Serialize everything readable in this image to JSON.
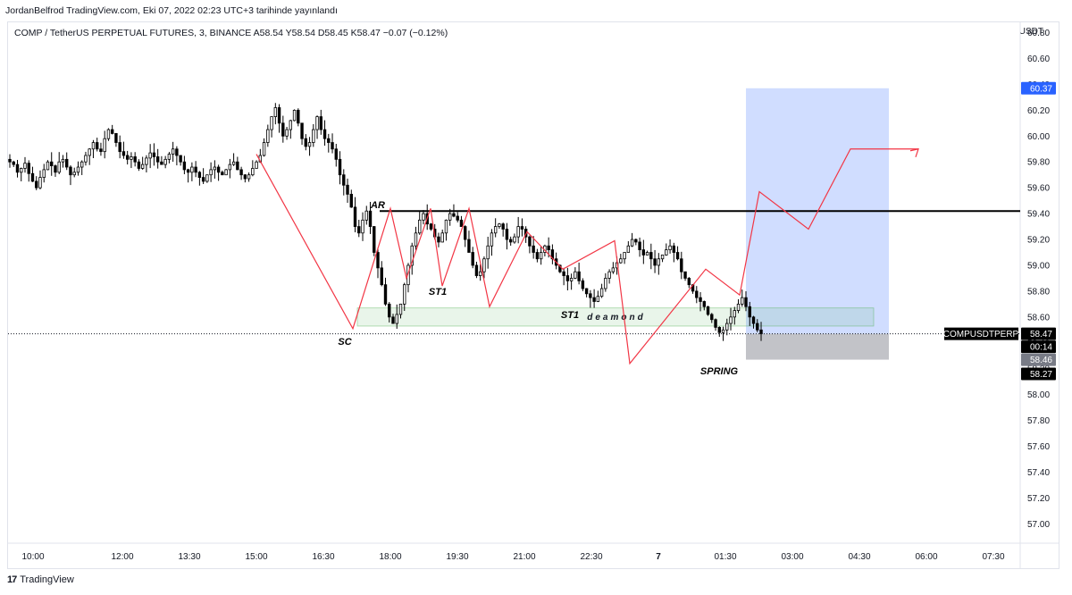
{
  "header": {
    "caption": "JordanBelfrod TradingView.com, Eki 07, 2022 02:23 UTC+3 tarihinde yayınlandı"
  },
  "legend": {
    "text": "COMP / TetherUS PERPETUAL FUTURES, 3, BINANCE  A58.54  Y58.54  D58.45  K58.47  −0.07 (−0.12%)"
  },
  "chart_data": {
    "type": "candlestick",
    "symbol": "COMPUSDTPERP",
    "unit": "USDT",
    "ylim": [
      56.85,
      60.88
    ],
    "y_ticks": [
      "60.80",
      "60.60",
      "60.40",
      "60.20",
      "60.00",
      "59.80",
      "59.60",
      "59.40",
      "59.20",
      "59.00",
      "58.80",
      "58.60",
      "58.40",
      "58.20",
      "58.00",
      "57.80",
      "57.60",
      "57.40",
      "57.20",
      "57.00"
    ],
    "x_ticks": [
      "10:00",
      "12:00",
      "13:30",
      "15:00",
      "16:30",
      "18:00",
      "19:30",
      "21:00",
      "22:30",
      "7",
      "01:30",
      "03:00",
      "04:30",
      "06:00",
      "07:30"
    ],
    "price_line": 58.47,
    "price_tags": [
      {
        "label": "60.37",
        "value": 60.37,
        "color": "#2962ff"
      },
      {
        "label": "58.47",
        "value": 58.47,
        "color": "#000000"
      },
      {
        "label": "00:14",
        "value": 58.37,
        "color": "#000000"
      },
      {
        "label": "58.46",
        "value": 58.27,
        "color": "#787b86"
      },
      {
        "label": "58.27",
        "value": 58.16,
        "color": "#000000"
      }
    ],
    "symbol_tag": "COMPUSDTPERP",
    "resistance_level": 59.42,
    "zone": {
      "label": "deamond",
      "top": 58.67,
      "bottom": 58.53
    },
    "annotations": [
      {
        "label": "AR",
        "price": 59.51
      },
      {
        "label": "SC",
        "price": 58.38
      },
      {
        "label": "ST1",
        "price": 58.82
      },
      {
        "label": "ST1",
        "price": 58.65
      },
      {
        "label": "SPRING",
        "price": 58.05
      }
    ],
    "position": {
      "entry": 58.47,
      "target": 60.37,
      "stop": 58.27
    },
    "path_prices": [
      59.86,
      58.51,
      59.44,
      58.9,
      59.44,
      58.84,
      59.44,
      58.68,
      59.26,
      58.97,
      59.19,
      58.24,
      58.97,
      58.77,
      59.57,
      59.28,
      59.9
    ],
    "projection_prices": [
      58.77,
      58.97,
      58.77,
      59.57,
      59.28,
      59.9
    ],
    "closes": [
      59.8,
      59.78,
      59.72,
      59.75,
      59.79,
      59.71,
      59.65,
      59.6,
      59.68,
      59.74,
      59.8,
      59.77,
      59.72,
      59.8,
      59.82,
      59.76,
      59.7,
      59.72,
      59.76,
      59.8,
      59.85,
      59.9,
      59.95,
      59.9,
      59.88,
      59.98,
      60.05,
      60.02,
      59.95,
      59.88,
      59.85,
      59.82,
      59.84,
      59.8,
      59.75,
      59.78,
      59.83,
      59.87,
      59.84,
      59.8,
      59.78,
      59.82,
      59.86,
      59.9,
      59.85,
      59.8,
      59.74,
      59.72,
      59.76,
      59.72,
      59.68,
      59.65,
      59.7,
      59.74,
      59.76,
      59.72,
      59.7,
      59.74,
      59.78,
      59.8,
      59.74,
      59.7,
      59.67,
      59.7,
      59.75,
      59.8,
      59.85,
      59.95,
      60.05,
      60.15,
      60.22,
      60.1,
      60.0,
      60.05,
      60.12,
      60.2,
      60.1,
      59.98,
      59.92,
      59.95,
      60.05,
      60.15,
      60.05,
      59.98,
      59.95,
      59.9,
      59.82,
      59.7,
      59.62,
      59.55,
      59.45,
      59.3,
      59.25,
      59.35,
      59.42,
      59.3,
      59.1,
      58.98,
      58.85,
      58.7,
      58.6,
      58.55,
      58.62,
      58.7,
      58.85,
      59.0,
      59.15,
      59.25,
      59.35,
      59.4,
      59.32,
      59.28,
      59.22,
      59.18,
      59.25,
      59.35,
      59.4,
      59.38,
      59.35,
      59.3,
      59.2,
      59.1,
      59.0,
      58.92,
      58.95,
      59.05,
      59.15,
      59.25,
      59.3,
      59.32,
      59.28,
      59.2,
      59.18,
      59.22,
      59.3,
      59.28,
      59.22,
      59.15,
      59.1,
      59.05,
      59.1,
      59.15,
      59.12,
      59.05,
      59.0,
      58.95,
      58.92,
      58.88,
      58.9,
      58.95,
      58.88,
      58.82,
      58.78,
      58.75,
      58.72,
      58.76,
      58.82,
      58.9,
      58.95,
      58.98,
      59.02,
      59.05,
      59.1,
      59.15,
      59.2,
      59.18,
      59.12,
      59.08,
      59.1,
      59.05,
      59.0,
      59.05,
      59.08,
      59.12,
      59.15,
      59.1,
      59.05,
      58.95,
      58.9,
      58.85,
      58.8,
      58.75,
      58.72,
      58.68,
      58.62,
      58.58,
      58.52,
      58.48,
      58.5,
      58.55,
      58.6,
      58.65,
      58.7,
      58.75,
      58.68,
      58.6,
      58.55,
      58.5,
      58.47
    ]
  }
}
